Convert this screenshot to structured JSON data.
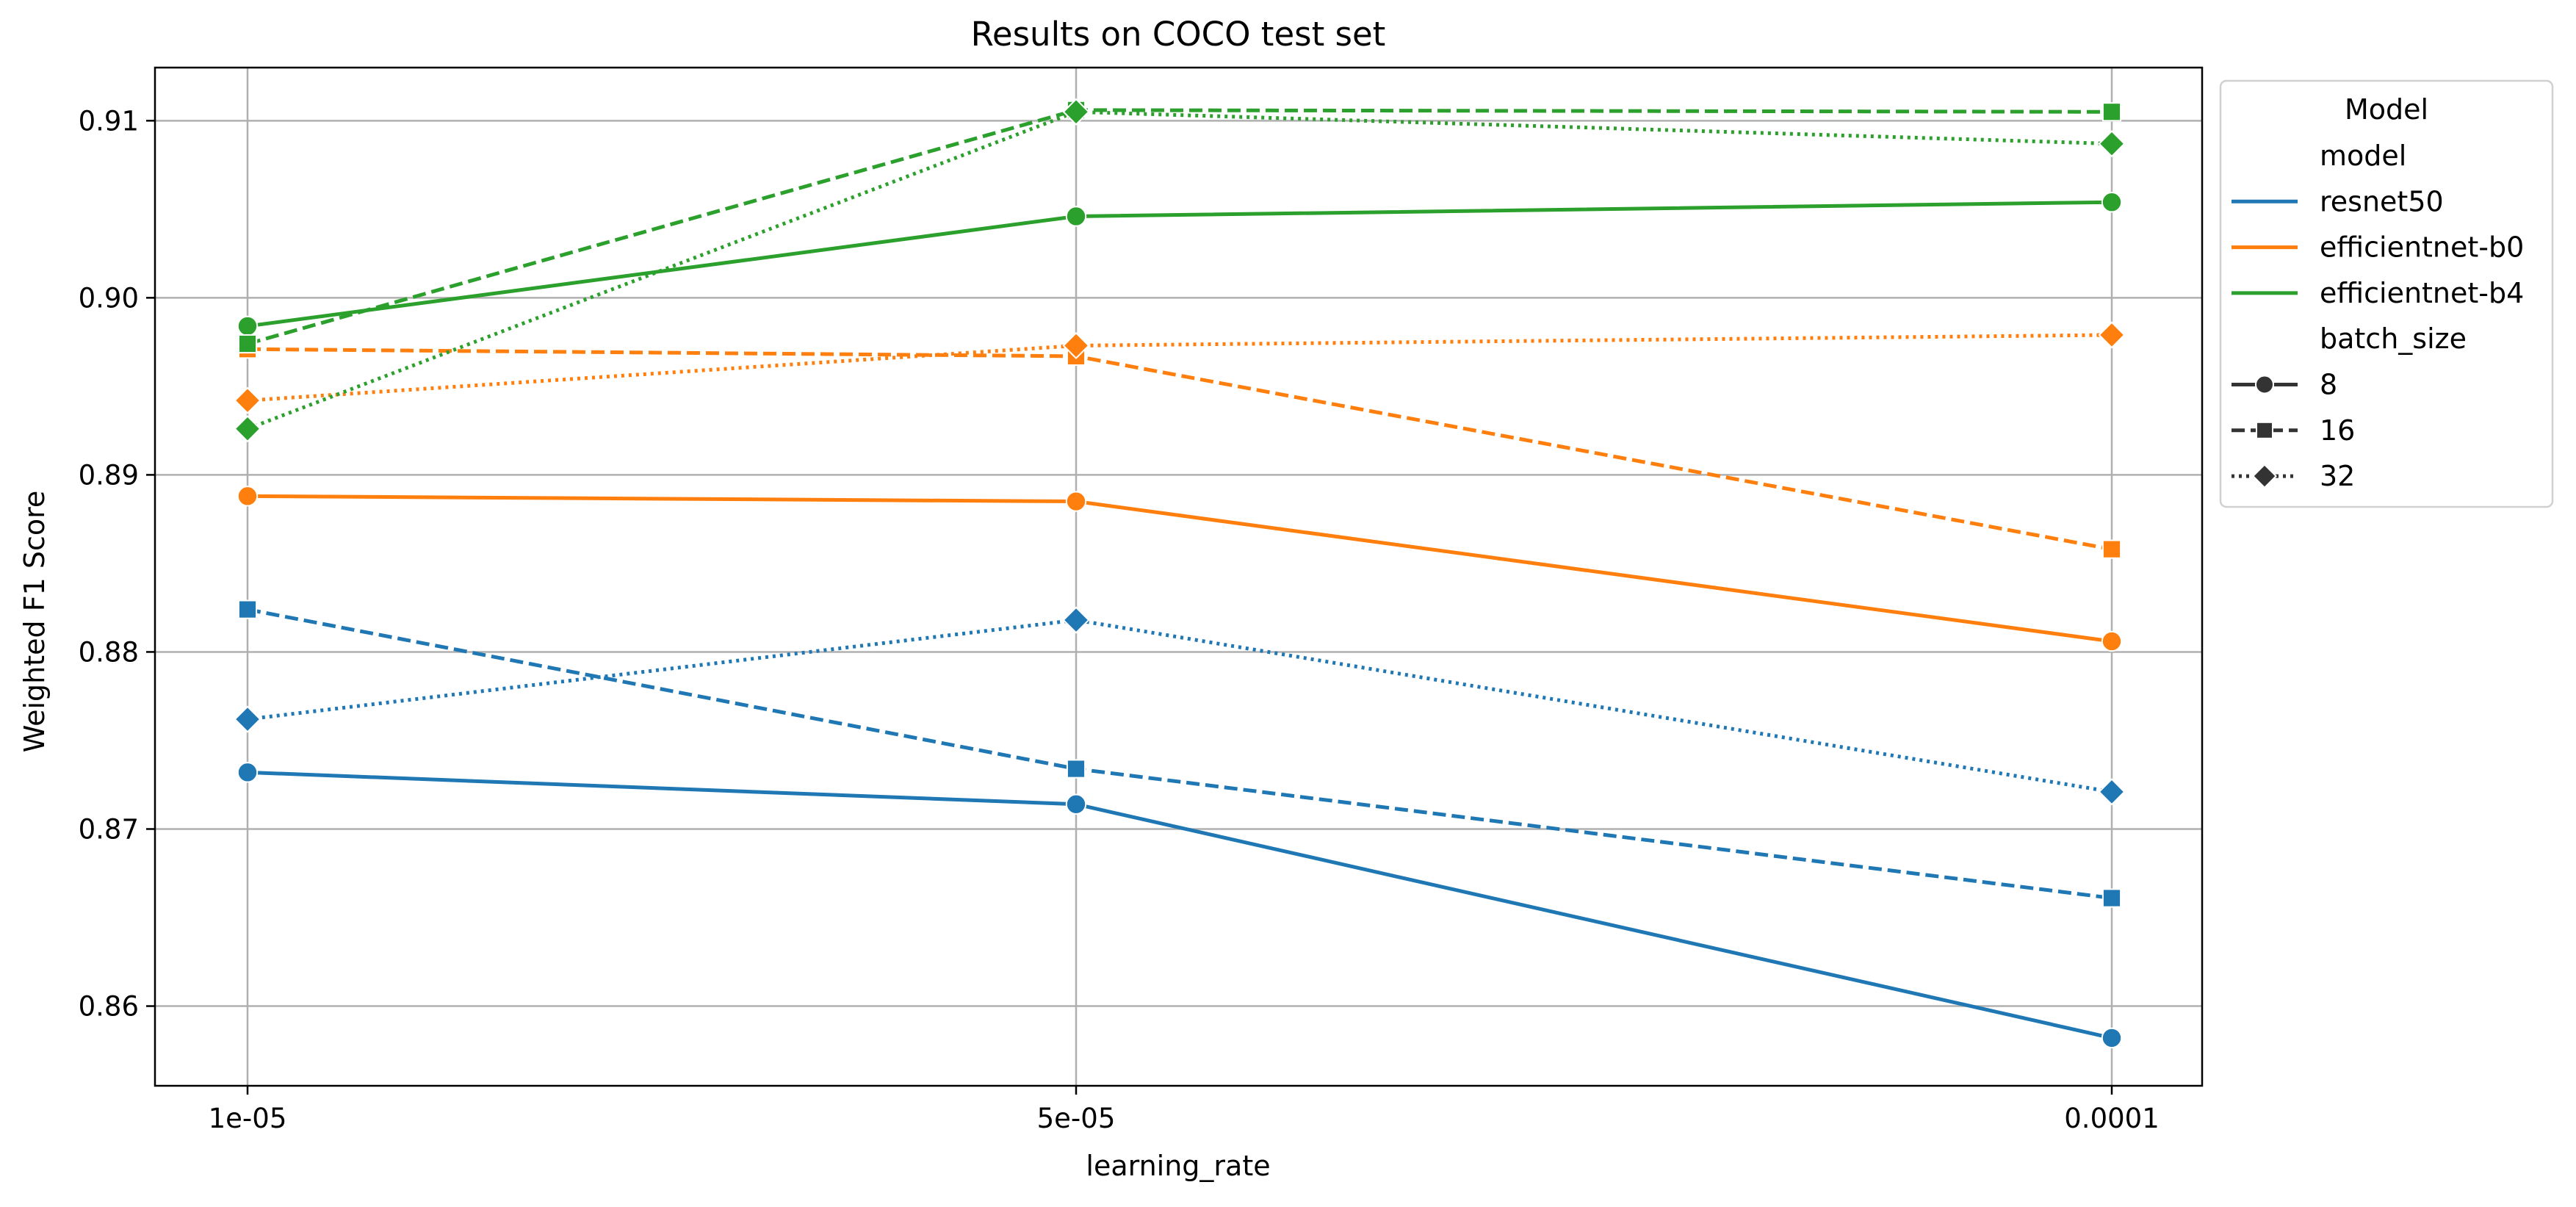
{
  "chart_data": {
    "type": "line",
    "title": "Results on COCO test set",
    "xlabel": "learning_rate",
    "ylabel": "Weighted F1 Score",
    "x_categories": [
      "1e-05",
      "5e-05",
      "0.0001"
    ],
    "x_scale": "categorical, non-uniform spacing (log-like)",
    "ylim": [
      0.8555,
      0.913
    ],
    "yticks": [
      "0.86",
      "0.87",
      "0.88",
      "0.89",
      "0.90",
      "0.91"
    ],
    "grid": true,
    "legend": {
      "placement": "outside-right-top",
      "title": "Model",
      "hue_title": "model",
      "style_title": "batch_size",
      "models": [
        {
          "label": "resnet50",
          "color": "#1f77b4"
        },
        {
          "label": "efficientnet-b0",
          "color": "#ff7f0e"
        },
        {
          "label": "efficientnet-b4",
          "color": "#2ca02c"
        }
      ],
      "batch_sizes": [
        {
          "label": "8",
          "dash": "solid",
          "marker": "circle"
        },
        {
          "label": "16",
          "dash": "dashed",
          "marker": "square"
        },
        {
          "label": "32",
          "dash": "dotted",
          "marker": "diamond"
        }
      ]
    },
    "series": [
      {
        "model": "resnet50",
        "batch_size": "8",
        "values": [
          0.8732,
          0.8714,
          0.8582
        ]
      },
      {
        "model": "resnet50",
        "batch_size": "16",
        "values": [
          0.8824,
          0.8734,
          0.8661
        ]
      },
      {
        "model": "resnet50",
        "batch_size": "32",
        "values": [
          0.8762,
          0.8818,
          0.8721
        ]
      },
      {
        "model": "efficientnet-b0",
        "batch_size": "8",
        "values": [
          0.8888,
          0.8885,
          0.8806
        ]
      },
      {
        "model": "efficientnet-b0",
        "batch_size": "16",
        "values": [
          0.8971,
          0.8967,
          0.8858
        ]
      },
      {
        "model": "efficientnet-b0",
        "batch_size": "32",
        "values": [
          0.8942,
          0.8973,
          0.8979
        ]
      },
      {
        "model": "efficientnet-b4",
        "batch_size": "8",
        "values": [
          0.8984,
          0.9046,
          0.9054
        ]
      },
      {
        "model": "efficientnet-b4",
        "batch_size": "16",
        "values": [
          0.8974,
          0.9106,
          0.9105
        ]
      },
      {
        "model": "efficientnet-b4",
        "batch_size": "32",
        "values": [
          0.8926,
          0.9105,
          0.9087
        ]
      }
    ]
  }
}
